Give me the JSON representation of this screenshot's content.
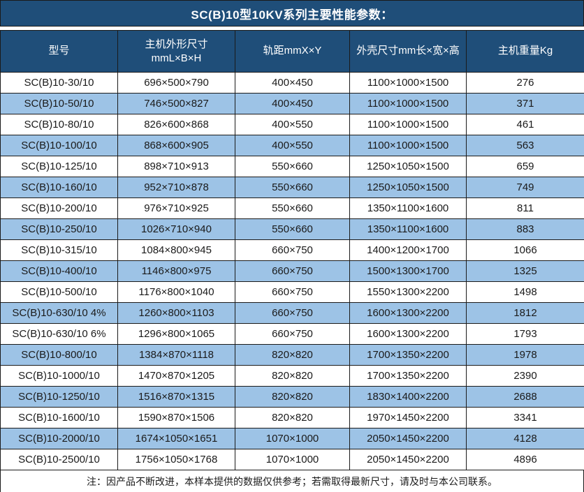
{
  "title": "SC(B)10型10KV系列主要性能参数：",
  "colors": {
    "header_bg": "#1f4e79",
    "stripe_bg": "#9dc3e6",
    "row_bg": "#ffffff",
    "border": "#1a1a1a",
    "header_text": "#ffffff",
    "cell_text": "#1a1a1a"
  },
  "table": {
    "columns": [
      {
        "label": "型号"
      },
      {
        "label": "主机外形尺寸",
        "label_line2": "mmL×B×H"
      },
      {
        "label": "轨距mmX×Y"
      },
      {
        "label": "外壳尺寸mm长×宽×高"
      },
      {
        "label": "主机重量Kg"
      }
    ],
    "rows": [
      [
        "SC(B)10-30/10",
        "696×500×790",
        "400×450",
        "1100×1000×1500",
        "276"
      ],
      [
        "SC(B)10-50/10",
        "746×500×827",
        "400×450",
        "1100×1000×1500",
        "371"
      ],
      [
        "SC(B)10-80/10",
        "826×600×868",
        "400×550",
        "1100×1000×1500",
        "461"
      ],
      [
        "SC(B)10-100/10",
        "868×600×905",
        "400×550",
        "1100×1000×1500",
        "563"
      ],
      [
        "SC(B)10-125/10",
        "898×710×913",
        "550×660",
        "1250×1050×1500",
        "659"
      ],
      [
        "SC(B)10-160/10",
        "952×710×878",
        "550×660",
        "1250×1050×1500",
        "749"
      ],
      [
        "SC(B)10-200/10",
        "976×710×925",
        "550×660",
        "1350×1100×1600",
        "811"
      ],
      [
        "SC(B)10-250/10",
        "1026×710×940",
        "550×660",
        "1350×1100×1600",
        "883"
      ],
      [
        "SC(B)10-315/10",
        "1084×800×945",
        "660×750",
        "1400×1200×1700",
        "1066"
      ],
      [
        "SC(B)10-400/10",
        "1146×800×975",
        "660×750",
        "1500×1300×1700",
        "1325"
      ],
      [
        "SC(B)10-500/10",
        "1176×800×1040",
        "660×750",
        "1550×1300×2200",
        "1498"
      ],
      [
        "SC(B)10-630/10 4%",
        "1260×800×1103",
        "660×750",
        "1600×1300×2200",
        "1812"
      ],
      [
        "SC(B)10-630/10 6%",
        "1296×800×1065",
        "660×750",
        "1600×1300×2200",
        "1793"
      ],
      [
        "SC(B)10-800/10",
        "1384×870×1118",
        "820×820",
        "1700×1350×2200",
        "1978"
      ],
      [
        "SC(B)10-1000/10",
        "1470×870×1205",
        "820×820",
        "1700×1350×2200",
        "2390"
      ],
      [
        "SC(B)10-1250/10",
        "1516×870×1315",
        "820×820",
        "1830×1400×2200",
        "2688"
      ],
      [
        "SC(B)10-1600/10",
        "1590×870×1506",
        "820×820",
        "1970×1450×2200",
        "3341"
      ],
      [
        "SC(B)10-2000/10",
        "1674×1050×1651",
        "1070×1000",
        "2050×1450×2200",
        "4128"
      ],
      [
        "SC(B)10-2500/10",
        "1756×1050×1768",
        "1070×1000",
        "2050×1450×2200",
        "4896"
      ]
    ]
  },
  "footer_note": "注：因产品不断改进，本样本提供的数据仅供参考；若需取得最新尺寸，请及时与本公司联系。"
}
